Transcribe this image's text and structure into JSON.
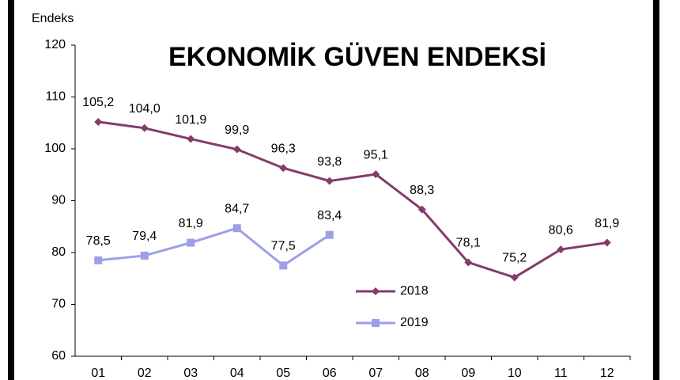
{
  "chart_data": {
    "type": "line",
    "title": "EKONOMİK GÜVEN ENDEKSİ",
    "y_label": "Endeks",
    "categories": [
      "01",
      "02",
      "03",
      "04",
      "05",
      "06",
      "07",
      "08",
      "09",
      "10",
      "11",
      "12"
    ],
    "series": [
      {
        "name": "2018",
        "color": "#833c6b",
        "marker": "diamond",
        "values": [
          105.2,
          104.0,
          101.9,
          99.9,
          96.3,
          93.8,
          95.1,
          88.3,
          78.1,
          75.2,
          80.6,
          81.9
        ],
        "value_labels": [
          "105,2",
          "104,0",
          "101,9",
          "99,9",
          "96,3",
          "93,8",
          "95,1",
          "88,3",
          "78,1",
          "75,2",
          "80,6",
          "81,9"
        ]
      },
      {
        "name": "2019",
        "color": "#9d9fe8",
        "marker": "square",
        "values": [
          78.5,
          79.4,
          81.9,
          84.7,
          77.5,
          83.4,
          null,
          null,
          null,
          null,
          null,
          null
        ],
        "value_labels": [
          "78,5",
          "79,4",
          "81,9",
          "84,7",
          "77,5",
          "83,4",
          null,
          null,
          null,
          null,
          null,
          null
        ]
      }
    ],
    "ylim": [
      60,
      120
    ],
    "yticks": [
      60,
      70,
      80,
      90,
      100,
      110,
      120
    ]
  }
}
